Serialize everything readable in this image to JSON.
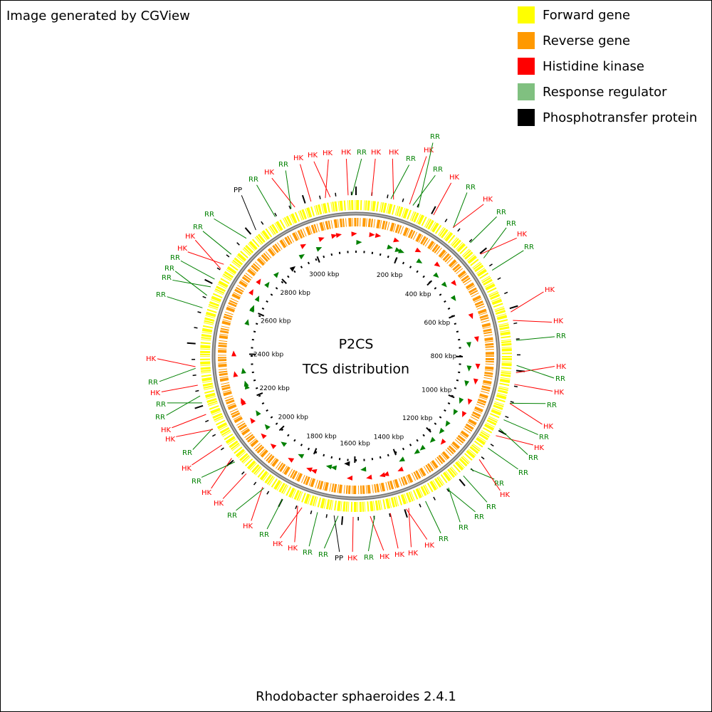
{
  "header": {
    "credit": "Image generated by CGView"
  },
  "legend": [
    {
      "label": "Forward gene",
      "color": "#ffff00"
    },
    {
      "label": "Reverse gene",
      "color": "#ff9900"
    },
    {
      "label": "Histidine kinase",
      "color": "#ff0000"
    },
    {
      "label": "Response regulator",
      "color": "#80c080"
    },
    {
      "label": "Phosphotransfer protein",
      "color": "#000000"
    }
  ],
  "center": {
    "title": "P2CS",
    "subtitle": "TCS distribution"
  },
  "ruler": [
    "200 kbp",
    "400 kbp",
    "600 kbp",
    "800 kbp",
    "1000 kbp",
    "1200 kbp",
    "1400 kbp",
    "1600 kbp",
    "1800 kbp",
    "2000 kbp",
    "2200 kbp",
    "2400 kbp",
    "2600 kbp",
    "2800 kbp",
    "3000 kbp"
  ],
  "features": [
    "RR",
    "HK",
    "HK",
    "RR",
    "HK",
    "RR",
    "RR",
    "HK",
    "RR",
    "HK",
    "RR",
    "RR",
    "HK",
    "RR",
    "HK",
    "HK",
    "RR",
    "HK",
    "RR",
    "HK",
    "RR",
    "HK",
    "RR",
    "HK",
    "RR",
    "RR",
    "RR",
    "HK",
    "RR",
    "RR",
    "RR",
    "RR",
    "HK",
    "HK",
    "HK",
    "HK",
    "RR",
    "HK",
    "PP",
    "RR",
    "RR",
    "HK",
    "HK",
    "RR",
    "HK",
    "RR",
    "HK",
    "HK",
    "RR",
    "HK",
    "RR",
    "HK",
    "HK",
    "RR",
    "RR",
    "HK",
    "RR",
    "HK",
    "RR",
    "RR",
    "RR",
    "RR",
    "HK",
    "HK",
    "RR",
    "RR",
    "PP",
    "RR",
    "HK",
    "RR",
    "HK",
    "HK",
    "HK",
    "HK"
  ],
  "footer": {
    "organism": "Rhodobacter sphaeroides 2.4.1"
  }
}
